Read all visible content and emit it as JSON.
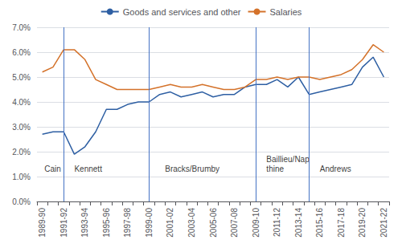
{
  "chart_data": {
    "type": "line",
    "categories": [
      "1989-90",
      null,
      "1991-92",
      null,
      "1993-94",
      null,
      "1995-96",
      null,
      "1997-98",
      null,
      "1999-00",
      null,
      "2001-02",
      null,
      "2003-04",
      null,
      "2005-06",
      null,
      "2007-08",
      null,
      "2009-10",
      null,
      "2011-12",
      null,
      "2013-14",
      null,
      "2015-16",
      null,
      "2017-18",
      null,
      "2019-20",
      null,
      "2021-22"
    ],
    "series": [
      {
        "name": "Goods and services and other",
        "color": "#2e5fa3",
        "values": [
          0.027,
          0.028,
          0.028,
          0.019,
          0.022,
          0.028,
          0.037,
          0.037,
          0.039,
          0.04,
          0.04,
          0.043,
          0.044,
          0.042,
          0.043,
          0.044,
          0.042,
          0.043,
          0.043,
          0.046,
          0.047,
          0.047,
          0.049,
          0.046,
          0.05,
          0.043,
          0.044,
          0.045,
          0.046,
          0.047,
          0.054,
          0.058,
          0.05
        ]
      },
      {
        "name": "Salaries",
        "color": "#d4722a",
        "values": [
          0.052,
          0.054,
          0.061,
          0.061,
          0.057,
          0.049,
          0.047,
          0.045,
          0.045,
          0.045,
          0.045,
          0.046,
          0.047,
          0.046,
          0.046,
          0.047,
          0.046,
          0.045,
          0.045,
          0.046,
          0.049,
          0.049,
          0.05,
          0.049,
          0.05,
          0.05,
          0.049,
          0.05,
          0.051,
          0.053,
          0.057,
          0.063,
          0.06
        ]
      }
    ],
    "ylim": [
      0.0,
      0.07
    ],
    "yticks": [
      {
        "value": 0.0,
        "label": "0.0%"
      },
      {
        "value": 0.01,
        "label": "1.0%"
      },
      {
        "value": 0.02,
        "label": "2.0%"
      },
      {
        "value": 0.03,
        "label": "3.0%"
      },
      {
        "value": 0.04,
        "label": "4.0%"
      },
      {
        "value": 0.05,
        "label": "5.0%"
      },
      {
        "value": 0.06,
        "label": "6.0%"
      },
      {
        "value": 0.07,
        "label": "7.0%"
      }
    ],
    "grid": true,
    "legend": "top",
    "vlines": [
      {
        "x": 2,
        "color": "#4472c4"
      },
      {
        "x": 10,
        "color": "#4472c4"
      },
      {
        "x": 20,
        "color": "#4472c4"
      },
      {
        "x": 25,
        "color": "#4472c4"
      }
    ],
    "annotations": [
      {
        "text": "Cain",
        "x": 0.2,
        "y": 0.011
      },
      {
        "text": "Kennett",
        "x": 3.0,
        "y": 0.011
      },
      {
        "text": "Bracks/Brumby",
        "x": 11.5,
        "y": 0.011
      },
      {
        "text": "Baillieu/Nap\nthine",
        "x": 21.0,
        "y": 0.011
      },
      {
        "text": "Andrews",
        "x": 26.0,
        "y": 0.011
      }
    ]
  }
}
